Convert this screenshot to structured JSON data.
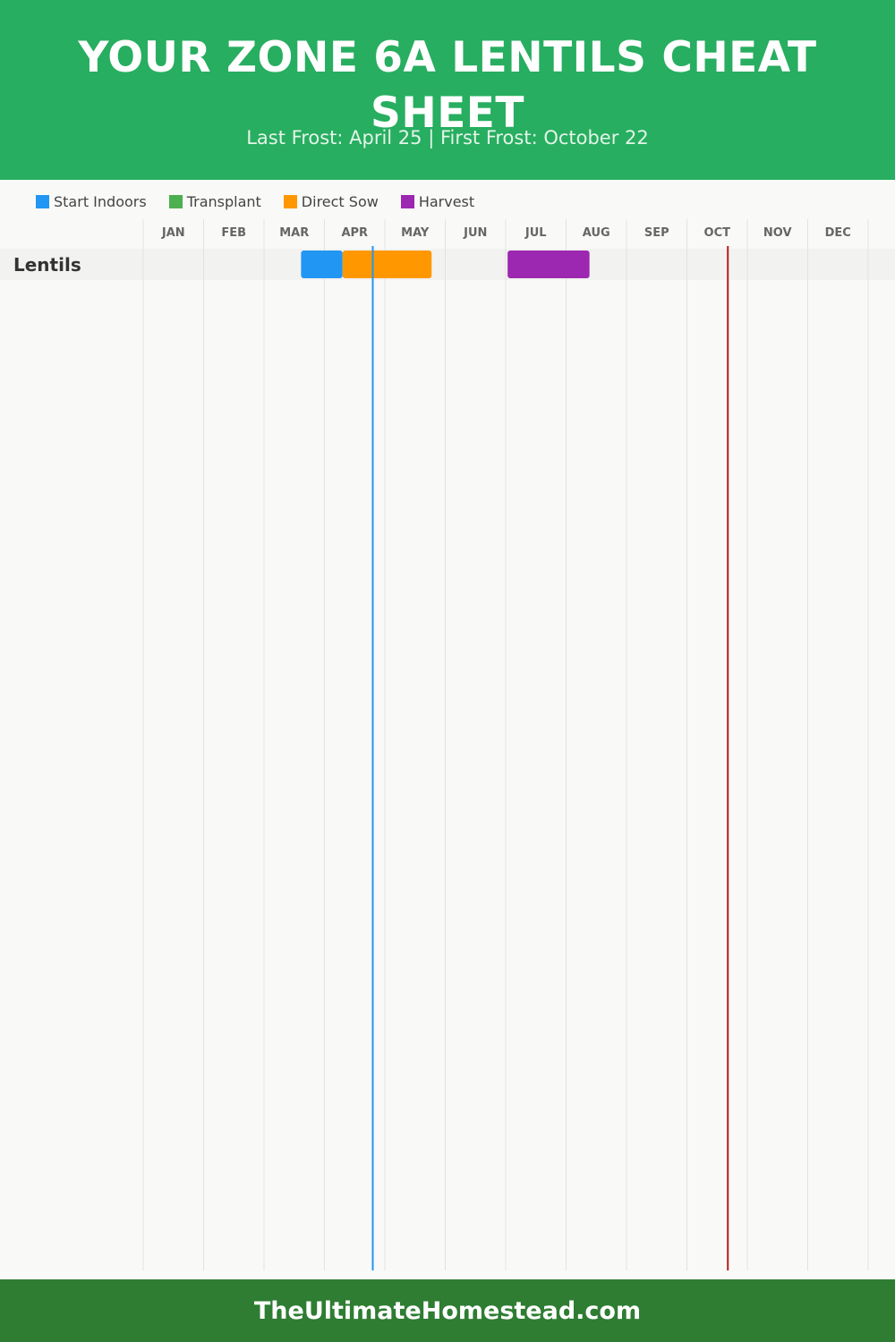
{
  "header": {
    "title": "YOUR ZONE 6A LENTILS CHEAT SHEET",
    "subtitle": "Last Frost: April 25 | First Frost: October 22"
  },
  "legend": [
    {
      "label": "Start Indoors",
      "color": "#2196f3"
    },
    {
      "label": "Transplant",
      "color": "#4caf50"
    },
    {
      "label": "Direct Sow",
      "color": "#ff9800"
    },
    {
      "label": "Harvest",
      "color": "#9c27b0"
    }
  ],
  "chart_data": {
    "type": "gantt",
    "months": [
      "JAN",
      "FEB",
      "MAR",
      "APR",
      "MAY",
      "JUN",
      "JUL",
      "AUG",
      "SEP",
      "OCT",
      "NOV",
      "DEC"
    ],
    "rows": [
      {
        "crop": "Lentils",
        "bars": [
          {
            "stage": "Start Indoors",
            "start": "Mar 20",
            "end": "Apr 10",
            "color": "#2196f3"
          },
          {
            "stage": "Direct Sow",
            "start": "Apr 10",
            "end": "May 25",
            "color": "#ff9800"
          },
          {
            "stage": "Harvest",
            "start": "Jul 2",
            "end": "Aug 13",
            "color": "#9c27b0"
          }
        ]
      }
    ],
    "frost_lines": [
      {
        "name": "Last Frost",
        "date": "Apr 25",
        "color": "#2196f3"
      },
      {
        "name": "First Frost",
        "date": "Oct 22",
        "color": "#b71c1c"
      }
    ],
    "grid": true,
    "legend_position": "top-left"
  },
  "footer": {
    "text": "TheUltimateHomestead.com"
  }
}
